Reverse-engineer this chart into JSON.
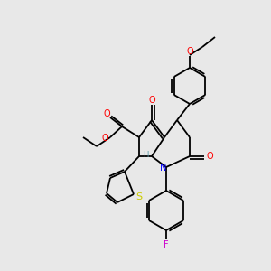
{
  "bg_color": "#e8e8e8",
  "bond_color": "#000000",
  "atom_colors": {
    "O": "#ff0000",
    "N": "#0000ff",
    "S": "#cccc00",
    "F": "#cc00cc",
    "H": "#5599aa",
    "C": "#000000"
  },
  "lw": 1.3
}
